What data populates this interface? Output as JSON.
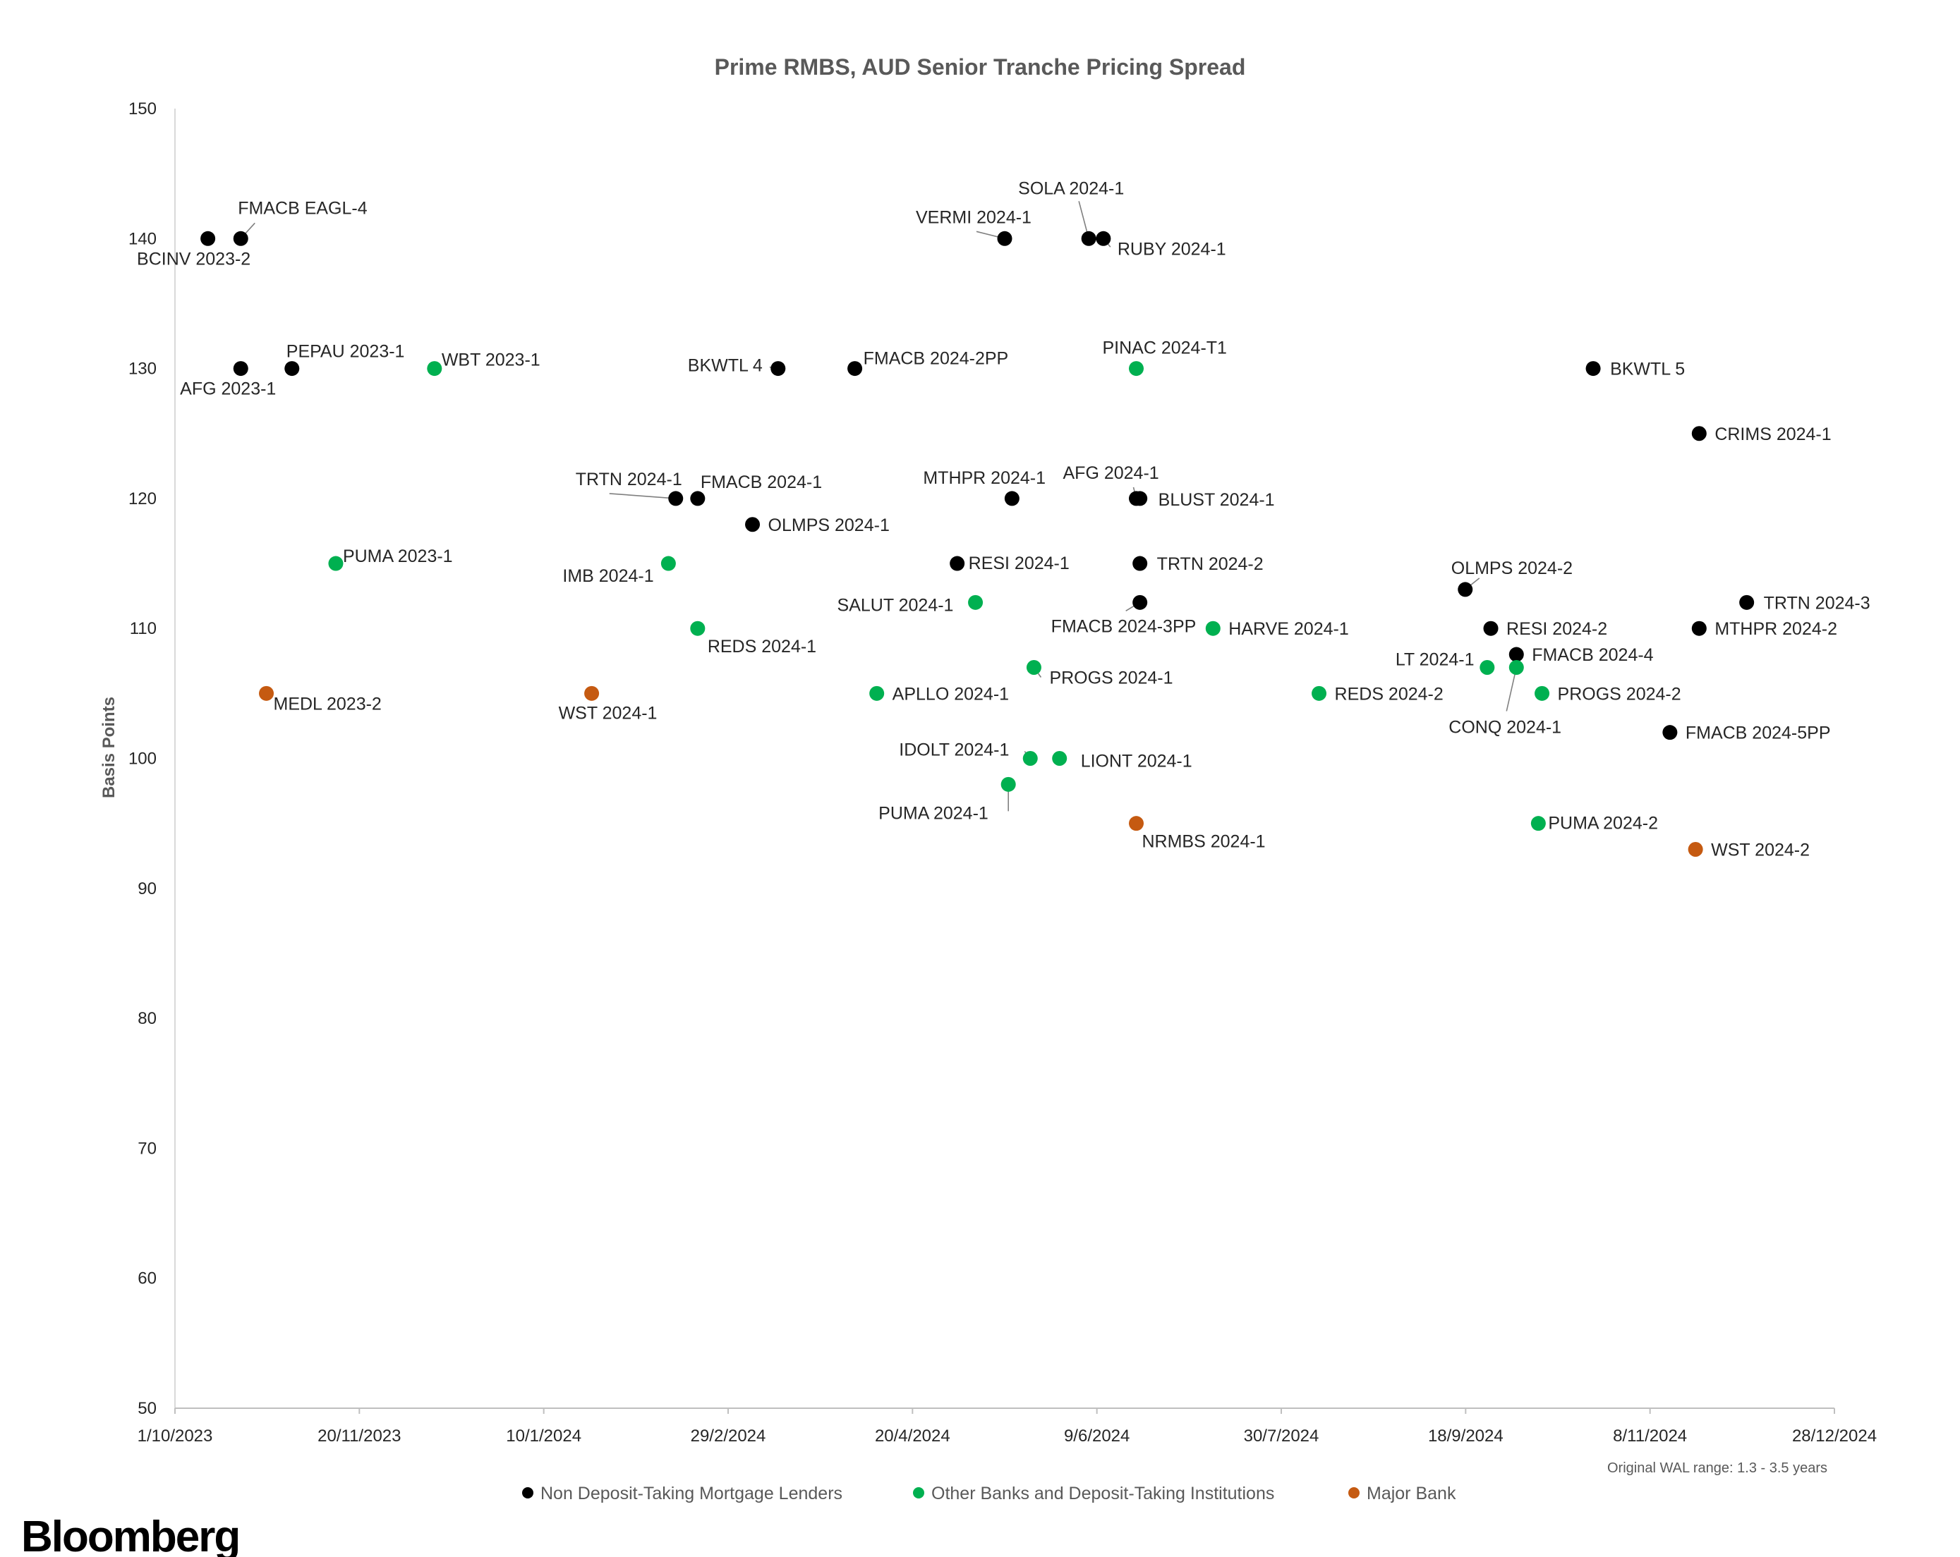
{
  "brand": "Bloomberg",
  "note": "Original WAL range: 1.3 - 3.5 years",
  "chart_data": {
    "type": "scatter",
    "title": "Prime RMBS, AUD Senior Tranche Pricing Spread",
    "xlabel": "",
    "ylabel": "Basis Points",
    "xlim": [
      "2023-10-01",
      "2024-12-28"
    ],
    "ylim": [
      50,
      150
    ],
    "x_ticks": [
      "1/10/2023",
      "20/11/2023",
      "10/1/2024",
      "29/2/2024",
      "20/4/2024",
      "9/6/2024",
      "30/7/2024",
      "18/9/2024",
      "8/11/2024",
      "28/12/2024"
    ],
    "y_ticks": [
      "50",
      "60",
      "70",
      "80",
      "90",
      "100",
      "110",
      "120",
      "130",
      "140",
      "150"
    ],
    "grid": false,
    "legend_position": "bottom",
    "series": [
      {
        "name": "Non Deposit-Taking Mortgage Lenders",
        "color": "#000000",
        "points": [
          {
            "label": "BCINV 2023-2",
            "x": "2023-10-10",
            "y": 140
          },
          {
            "label": "FMACB EAGL-4",
            "x": "2023-10-19",
            "y": 140
          },
          {
            "label": "AFG 2023-1",
            "x": "2023-10-19",
            "y": 130
          },
          {
            "label": "PEPAU 2023-1",
            "x": "2023-11-02",
            "y": 130
          },
          {
            "label": "TRTN 2024-1",
            "x": "2024-02-15",
            "y": 120
          },
          {
            "label": "FMACB 2024-1",
            "x": "2024-02-21",
            "y": 120
          },
          {
            "label": "OLMPS 2024-1",
            "x": "2024-03-07",
            "y": 118
          },
          {
            "label": "BKWTL 4",
            "x": "2024-03-14",
            "y": 130
          },
          {
            "label": "FMACB 2024-2PP",
            "x": "2024-04-04",
            "y": 130
          },
          {
            "label": "RESI 2024-1",
            "x": "2024-05-02",
            "y": 115
          },
          {
            "label": "VERMI 2024-1",
            "x": "2024-05-15",
            "y": 140
          },
          {
            "label": "MTHPR 2024-1",
            "x": "2024-05-17",
            "y": 120
          },
          {
            "label": "SOLA 2024-1",
            "x": "2024-06-07",
            "y": 140
          },
          {
            "label": "RUBY 2024-1",
            "x": "2024-06-11",
            "y": 140
          },
          {
            "label": "AFG 2024-1",
            "x": "2024-06-20",
            "y": 120
          },
          {
            "label": "BLUST 2024-1",
            "x": "2024-06-21",
            "y": 120
          },
          {
            "label": "TRTN 2024-2",
            "x": "2024-06-21",
            "y": 115
          },
          {
            "label": "FMACB 2024-3PP",
            "x": "2024-06-21",
            "y": 112
          },
          {
            "label": "OLMPS 2024-2",
            "x": "2024-09-18",
            "y": 113
          },
          {
            "label": "RESI 2024-2",
            "x": "2024-09-25",
            "y": 110
          },
          {
            "label": "FMACB 2024-4",
            "x": "2024-10-02",
            "y": 108
          },
          {
            "label": "BKWTL 5",
            "x": "2024-10-23",
            "y": 130
          },
          {
            "label": "CRIMS 2024-1",
            "x": "2024-11-21",
            "y": 125
          },
          {
            "label": "MTHPR 2024-2",
            "x": "2024-11-21",
            "y": 110
          },
          {
            "label": "FMACB 2024-5PP",
            "x": "2024-11-13",
            "y": 102
          },
          {
            "label": "TRTN 2024-3",
            "x": "2024-12-04",
            "y": 112
          }
        ]
      },
      {
        "name": "Other Banks and Deposit-Taking Institutions",
        "color": "#00B050",
        "points": [
          {
            "label": "PUMA 2023-1",
            "x": "2023-11-14",
            "y": 115
          },
          {
            "label": "WBT 2023-1",
            "x": "2023-12-11",
            "y": 130
          },
          {
            "label": "IMB 2024-1",
            "x": "2024-02-13",
            "y": 115
          },
          {
            "label": "REDS 2024-1",
            "x": "2024-02-21",
            "y": 110
          },
          {
            "label": "APLLO 2024-1",
            "x": "2024-04-10",
            "y": 105
          },
          {
            "label": "SALUT 2024-1",
            "x": "2024-05-07",
            "y": 112
          },
          {
            "label": "PROGS 2024-1",
            "x": "2024-05-23",
            "y": 107
          },
          {
            "label": "IDOLT 2024-1",
            "x": "2024-05-22",
            "y": 100
          },
          {
            "label": "LIONT 2024-1",
            "x": "2024-05-30",
            "y": 100
          },
          {
            "label": "PUMA 2024-1",
            "x": "2024-05-16",
            "y": 98
          },
          {
            "label": "PINAC 2024-T1",
            "x": "2024-06-20",
            "y": 130
          },
          {
            "label": "HARVE 2024-1",
            "x": "2024-07-11",
            "y": 110
          },
          {
            "label": "REDS 2024-2",
            "x": "2024-08-09",
            "y": 105
          },
          {
            "label": "LT 2024-1",
            "x": "2024-09-24",
            "y": 107
          },
          {
            "label": "CONQ 2024-1",
            "x": "2024-10-02",
            "y": 107
          },
          {
            "label": "PROGS 2024-2",
            "x": "2024-10-09",
            "y": 105
          },
          {
            "label": "PUMA 2024-2",
            "x": "2024-10-08",
            "y": 95
          }
        ]
      },
      {
        "name": "Major Bank",
        "color": "#C55A11",
        "points": [
          {
            "label": "MEDL 2023-2",
            "x": "2023-10-26",
            "y": 105
          },
          {
            "label": "WST 2024-1",
            "x": "2024-01-23",
            "y": 105
          },
          {
            "label": "NRMBS 2024-1",
            "x": "2024-06-20",
            "y": 95
          },
          {
            "label": "WST 2024-2",
            "x": "2024-11-20",
            "y": 93
          }
        ]
      }
    ]
  }
}
